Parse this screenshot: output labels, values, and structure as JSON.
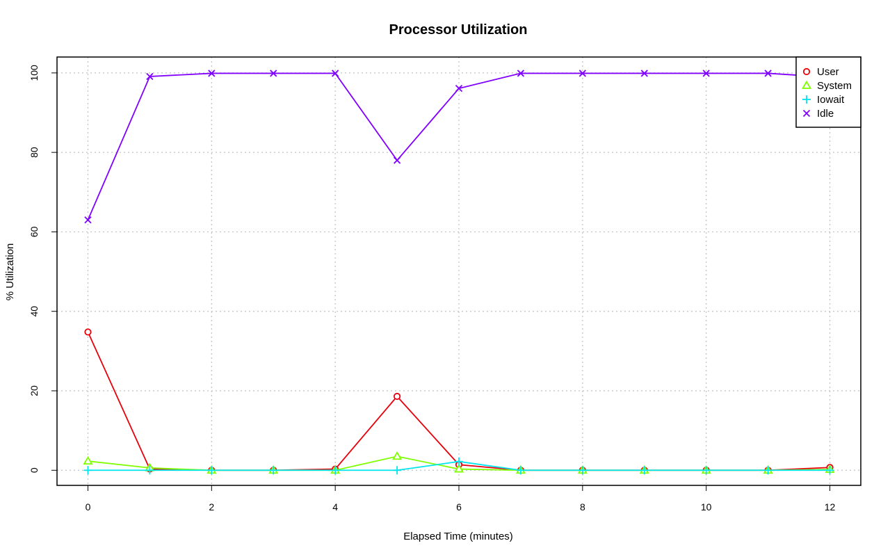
{
  "chart_data": {
    "type": "line",
    "title": "Processor Utilization",
    "xlabel": "Elapsed Time (minutes)",
    "ylabel": "% Utilization",
    "xlim": [
      -0.5,
      12.5
    ],
    "ylim": [
      -3.8,
      104
    ],
    "x_ticks": [
      0,
      2,
      4,
      6,
      8,
      10,
      12
    ],
    "y_ticks": [
      0,
      20,
      40,
      60,
      80,
      100
    ],
    "grid": true,
    "legend_position": "top-right",
    "x": [
      0,
      1,
      2,
      3,
      4,
      5,
      6,
      7,
      8,
      9,
      10,
      11,
      12
    ],
    "series": [
      {
        "name": "User",
        "color": "#e8000b",
        "marker": "circle",
        "values": [
          34.8,
          0.3,
          0,
          0,
          0.3,
          18.6,
          1.4,
          0,
          0,
          0,
          0,
          0,
          0.7
        ]
      },
      {
        "name": "System",
        "color": "#7fff00",
        "marker": "triangle",
        "values": [
          2.3,
          0.6,
          0,
          0,
          0,
          3.5,
          0.3,
          0,
          0,
          0,
          0,
          0,
          0.2
        ]
      },
      {
        "name": "Iowait",
        "color": "#00e5ee",
        "marker": "plus",
        "values": [
          0,
          0,
          0,
          0,
          0,
          0,
          2.2,
          0,
          0,
          0,
          0,
          0,
          0
        ]
      },
      {
        "name": "Idle",
        "color": "#8000ff",
        "marker": "cross",
        "values": [
          63,
          99.1,
          99.9,
          99.9,
          99.9,
          78,
          96.1,
          99.9,
          99.9,
          99.9,
          99.9,
          99.9,
          98.9
        ]
      }
    ]
  }
}
